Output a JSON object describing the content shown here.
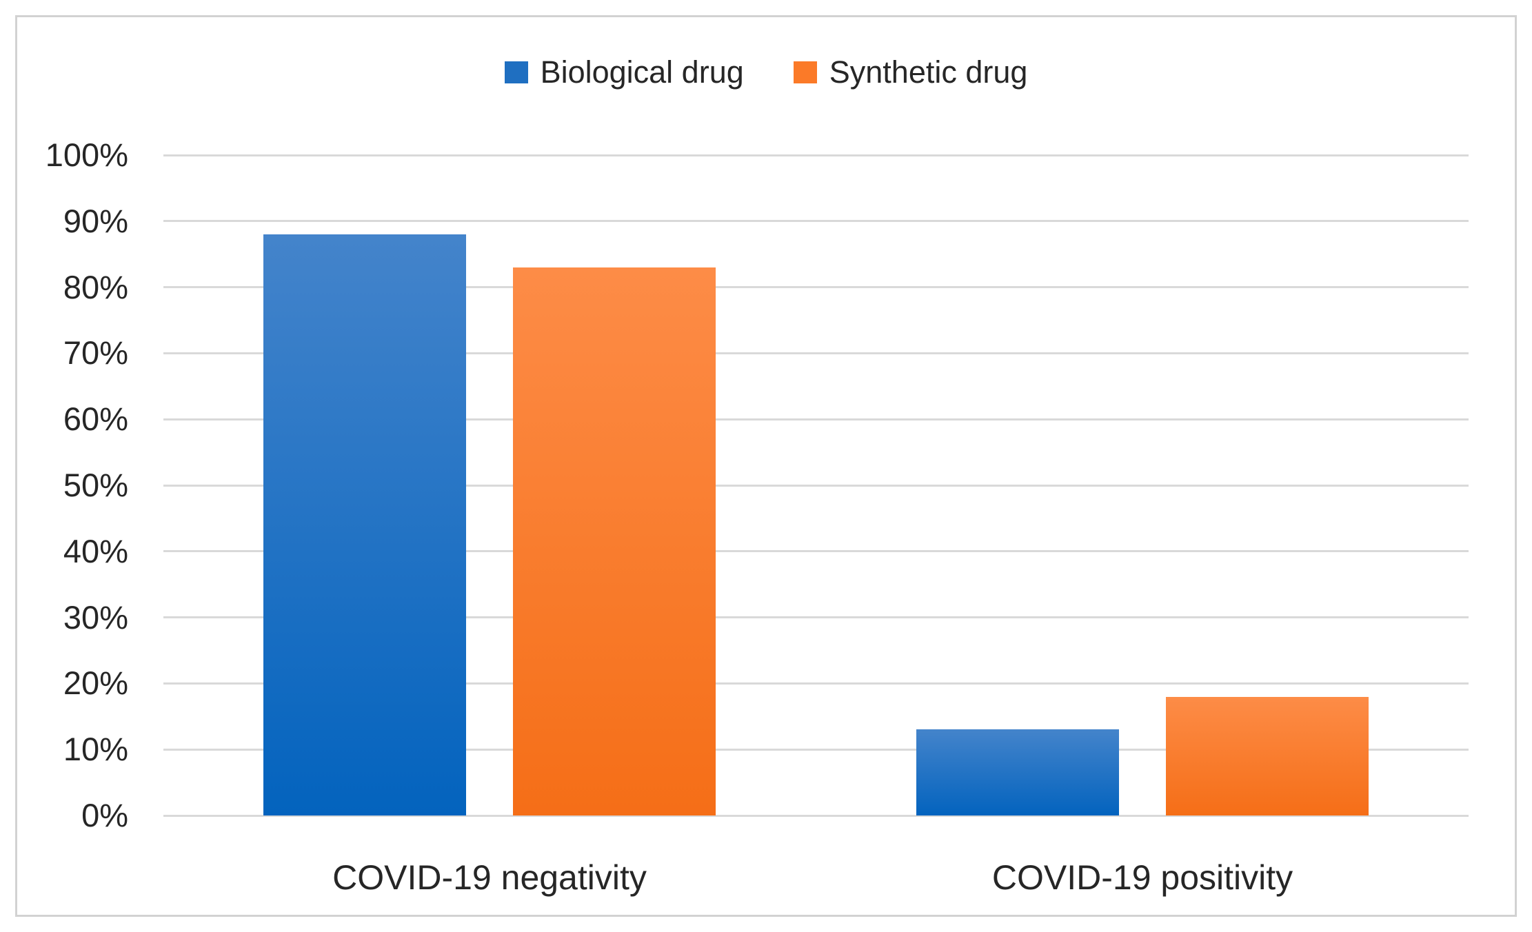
{
  "figure": {
    "background": "#ffffff",
    "border_color": "#d2d2d2"
  },
  "legend": {
    "position": "top-center",
    "items": [
      {
        "label": "Biological drug",
        "color": "#1f6fc1"
      },
      {
        "label": "Synthetic drug",
        "color": "#fb7a28"
      }
    ]
  },
  "chart_data": {
    "type": "bar",
    "title": "",
    "xlabel": "",
    "ylabel": "",
    "categories": [
      "COVID-19 negativity",
      "COVID-19 positivity"
    ],
    "series": [
      {
        "name": "Biological drug",
        "values": [
          88,
          13
        ],
        "color": "#1f6fc1",
        "gradient_top": "#4484cb",
        "gradient_bottom": "#0363be"
      },
      {
        "name": "Synthetic drug",
        "values": [
          83,
          18
        ],
        "color": "#fb7a28",
        "gradient_top": "#fd8c47",
        "gradient_bottom": "#f56e17"
      }
    ],
    "ylim": [
      0,
      100
    ],
    "ytick_values": [
      100,
      90,
      80,
      70,
      60,
      50,
      40,
      30,
      20,
      10,
      0
    ],
    "yticks": [
      "100%",
      "90%",
      "80%",
      "70%",
      "60%",
      "50%",
      "40%",
      "30%",
      "20%",
      "10%",
      "0%"
    ],
    "grid": true,
    "gridline_color": "#d9d9d9",
    "text_color": "#262626",
    "legend_position": "top"
  }
}
